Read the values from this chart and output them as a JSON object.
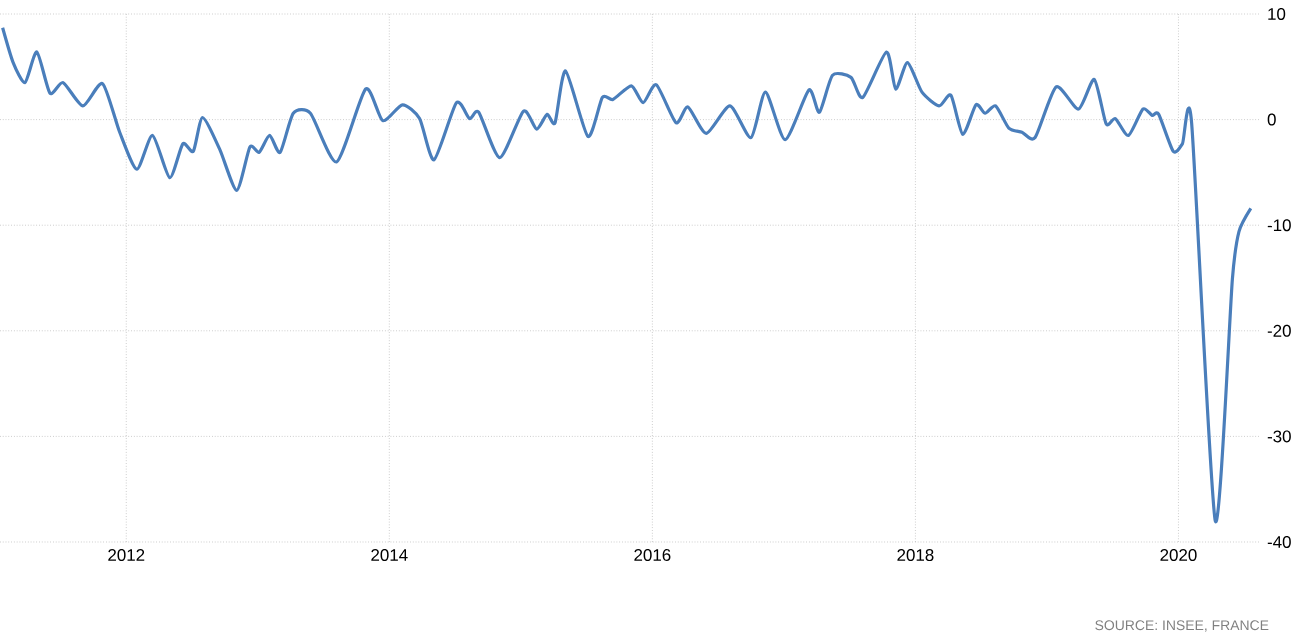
{
  "chart_data": {
    "type": "line",
    "xlim": [
      2011.04,
      2020.62
    ],
    "ylim": [
      -40,
      10
    ],
    "xticks": [
      2012,
      2014,
      2016,
      2018,
      2020
    ],
    "yticks": [
      -40,
      -30,
      -20,
      -10,
      0,
      10
    ],
    "grid": true,
    "marker": "none",
    "line_style": "solid",
    "annotations": [
      "SOURCE: INSEE, FRANCE"
    ],
    "series": [
      {
        "color": "#4a7ebb",
        "x": [
          2011.06,
          2011.14,
          2011.23,
          2011.32,
          2011.42,
          2011.52,
          2011.67,
          2011.82,
          2011.95,
          2012.08,
          2012.2,
          2012.33,
          2012.43,
          2012.51,
          2012.58,
          2012.71,
          2012.84,
          2012.94,
          2013.01,
          2013.09,
          2013.17,
          2013.27,
          2013.4,
          2013.6,
          2013.82,
          2013.95,
          2014.1,
          2014.23,
          2014.34,
          2014.51,
          2014.61,
          2014.68,
          2014.84,
          2015.02,
          2015.12,
          2015.2,
          2015.26,
          2015.34,
          2015.51,
          2015.62,
          2015.7,
          2015.84,
          2015.93,
          2016.03,
          2016.18,
          2016.27,
          2016.41,
          2016.59,
          2016.75,
          2016.86,
          2017.01,
          2017.19,
          2017.27,
          2017.37,
          2017.51,
          2017.6,
          2017.78,
          2017.85,
          2017.94,
          2018.05,
          2018.18,
          2018.27,
          2018.36,
          2018.46,
          2018.53,
          2018.61,
          2018.71,
          2018.81,
          2018.91,
          2019.07,
          2019.24,
          2019.36,
          2019.45,
          2019.52,
          2019.62,
          2019.73,
          2019.8,
          2019.85,
          2019.96,
          2020.03,
          2020.1,
          2020.28,
          2020.41,
          2020.46,
          2020.55
        ],
        "values": [
          8.7,
          5.4,
          3.5,
          6.4,
          2.5,
          3.5,
          1.3,
          3.4,
          -1.2,
          -4.7,
          -1.5,
          -5.5,
          -2.3,
          -3.0,
          0.2,
          -2.8,
          -6.7,
          -2.6,
          -3.1,
          -1.5,
          -3.1,
          0.6,
          0.6,
          -4.0,
          2.9,
          -0.1,
          1.4,
          0.1,
          -3.8,
          1.6,
          0.1,
          0.7,
          -3.6,
          0.8,
          -0.9,
          0.5,
          -0.3,
          4.6,
          -1.6,
          2.1,
          1.9,
          3.2,
          1.6,
          3.3,
          -0.3,
          1.2,
          -1.3,
          1.3,
          -1.7,
          2.6,
          -1.9,
          2.8,
          0.7,
          4.2,
          4.0,
          2.1,
          6.4,
          2.9,
          5.4,
          2.6,
          1.3,
          2.3,
          -1.4,
          1.4,
          0.6,
          1.3,
          -0.8,
          -1.2,
          -1.7,
          3.1,
          1.0,
          3.8,
          -0.4,
          0.1,
          -1.5,
          1.0,
          0.4,
          0.5,
          -3.0,
          -2.3,
          -0.3,
          -38.0,
          -15.1,
          -10.6,
          -8.4
        ]
      }
    ]
  }
}
